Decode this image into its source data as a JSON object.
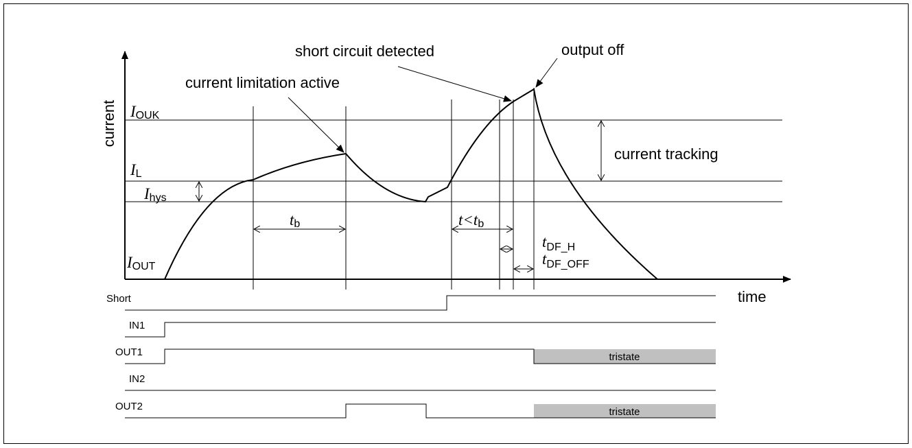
{
  "axes": {
    "y_label": "current",
    "x_label": "time"
  },
  "annotations": {
    "limitation": "current limitation active",
    "short_detected": "short circuit detected",
    "output_off": "output off",
    "tracking": "current tracking"
  },
  "levels": [
    {
      "symbol": "I",
      "sub": "OUK"
    },
    {
      "symbol": "I",
      "sub": "L"
    },
    {
      "symbol": "I",
      "sub": "hys"
    },
    {
      "symbol": "I",
      "sub": "OUT"
    }
  ],
  "intervals": [
    {
      "symbol": "t",
      "sub": "b"
    },
    {
      "symbol": "t",
      "relation": "<",
      "sym2": "t",
      "sub": "b"
    },
    {
      "symbol": "t",
      "sub": "DF_H"
    },
    {
      "symbol": "t",
      "sub": "DF_OFF"
    }
  ],
  "signals": [
    "Short",
    "IN1",
    "OUT1",
    "IN2",
    "OUT2"
  ],
  "tristate": [
    "tristate",
    "tristate"
  ]
}
